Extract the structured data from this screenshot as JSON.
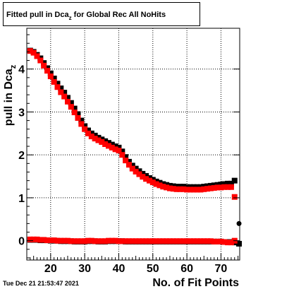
{
  "title": {
    "prefix": "Fitted pull in Dca",
    "subscript": "z",
    "suffix": " for Global Rec All NoHits"
  },
  "timestamp": "Tue Dec 21 21:53:47 2021",
  "colors": {
    "series_black": "#000000",
    "series_red": "#ff0000",
    "grid": "#000000"
  },
  "chart_data": {
    "type": "scatter",
    "xlabel": "No. of Fit Points",
    "ylabel": "pull in Dca",
    "ylabel_subscript": "z",
    "xlim": [
      13,
      75.5
    ],
    "ylim": [
      -0.45,
      4.95
    ],
    "xticks": [
      20,
      30,
      40,
      50,
      60,
      70
    ],
    "yticks": [
      0,
      1,
      2,
      3,
      4
    ],
    "grid": true,
    "x": [
      14,
      15,
      16,
      17,
      18,
      19,
      20,
      21,
      22,
      23,
      24,
      25,
      26,
      27,
      28,
      29,
      30,
      31,
      32,
      33,
      34,
      35,
      36,
      37,
      38,
      39,
      40,
      41,
      42,
      43,
      44,
      45,
      46,
      47,
      48,
      49,
      50,
      51,
      52,
      53,
      54,
      55,
      56,
      57,
      58,
      59,
      60,
      61,
      62,
      63,
      64,
      65,
      66,
      67,
      68,
      69,
      70,
      71,
      72,
      73
    ],
    "series": [
      {
        "color": "black",
        "values": [
          4.43,
          4.4,
          4.33,
          4.25,
          4.14,
          4.02,
          3.9,
          3.78,
          3.66,
          3.55,
          3.45,
          3.33,
          3.21,
          3.08,
          2.95,
          2.8,
          2.67,
          2.57,
          2.5,
          2.45,
          2.4,
          2.36,
          2.32,
          2.28,
          2.24,
          2.2,
          2.17,
          2.08,
          1.95,
          1.84,
          1.75,
          1.68,
          1.62,
          1.56,
          1.51,
          1.46,
          1.42,
          1.38,
          1.35,
          1.32,
          1.3,
          1.28,
          1.27,
          1.26,
          1.26,
          1.26,
          1.25,
          1.25,
          1.25,
          1.25,
          1.25,
          1.26,
          1.27,
          1.28,
          1.29,
          1.3,
          1.31,
          1.32,
          1.33,
          1.33
        ],
        "extra_points": [
          [
            74,
            1.4
          ],
          [
            75.3,
            -0.07
          ]
        ],
        "low_values": [
          0.02,
          0.02,
          0.02,
          0.01,
          0.01,
          0.01,
          0.0,
          0.0,
          0.0,
          -0.01,
          -0.01,
          -0.01,
          -0.01,
          -0.02,
          -0.02,
          -0.02,
          -0.02,
          -0.01,
          -0.01,
          -0.01,
          -0.02,
          -0.02,
          -0.02,
          -0.01,
          -0.01,
          -0.01,
          -0.01,
          -0.01,
          -0.02,
          -0.02,
          -0.02,
          -0.02,
          -0.02,
          -0.02,
          -0.02,
          -0.02,
          -0.02,
          -0.02,
          -0.02,
          -0.02,
          -0.02,
          -0.02,
          -0.02,
          -0.02,
          -0.02,
          -0.02,
          -0.02,
          -0.02,
          -0.02,
          -0.02,
          -0.02,
          -0.02,
          -0.02,
          -0.02,
          -0.02,
          -0.02,
          -0.02,
          -0.03,
          -0.03,
          -0.03
        ],
        "low_extra_points": [
          [
            74,
            -0.04
          ]
        ]
      },
      {
        "color": "red",
        "values": [
          4.42,
          4.38,
          4.3,
          4.2,
          4.08,
          3.96,
          3.83,
          3.7,
          3.58,
          3.46,
          3.36,
          3.24,
          3.12,
          2.99,
          2.86,
          2.72,
          2.6,
          2.5,
          2.43,
          2.38,
          2.34,
          2.3,
          2.25,
          2.21,
          2.17,
          2.13,
          2.1,
          2.0,
          1.87,
          1.77,
          1.68,
          1.61,
          1.55,
          1.49,
          1.44,
          1.4,
          1.36,
          1.32,
          1.29,
          1.26,
          1.24,
          1.22,
          1.21,
          1.2,
          1.2,
          1.2,
          1.19,
          1.19,
          1.19,
          1.19,
          1.19,
          1.2,
          1.21,
          1.22,
          1.23,
          1.24,
          1.24,
          1.25,
          1.25,
          1.25
        ],
        "extra_points": [
          [
            74,
            1.02
          ]
        ],
        "low_values": [
          0.03,
          0.03,
          0.03,
          0.02,
          0.02,
          0.01,
          0.01,
          0.01,
          0.0,
          0.0,
          0.0,
          0.0,
          -0.01,
          -0.01,
          -0.01,
          -0.01,
          -0.01,
          0.0,
          0.0,
          -0.01,
          -0.01,
          -0.01,
          -0.01,
          0.0,
          0.0,
          0.0,
          -0.01,
          -0.01,
          -0.01,
          -0.01,
          -0.01,
          -0.01,
          -0.01,
          -0.01,
          -0.01,
          -0.01,
          -0.01,
          -0.01,
          -0.01,
          -0.01,
          -0.01,
          -0.01,
          -0.01,
          -0.01,
          -0.01,
          -0.01,
          -0.01,
          -0.01,
          -0.01,
          -0.01,
          -0.01,
          -0.01,
          -0.01,
          -0.01,
          -0.02,
          -0.02,
          -0.02,
          -0.03,
          -0.04,
          -0.04
        ],
        "low_extra_points": [
          [
            74,
            0.0
          ]
        ]
      }
    ],
    "single_points": [
      [
        75.3,
        0.4,
        "black"
      ]
    ]
  }
}
